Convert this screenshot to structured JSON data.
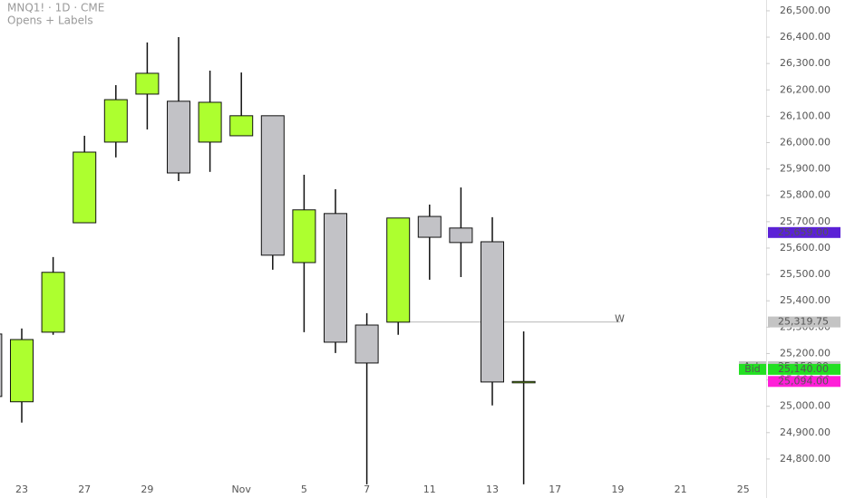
{
  "chart_data": {
    "type": "candlestick",
    "title": "MNQ1! · 1D · CME",
    "subtitle": "Opens + Labels",
    "categories": [
      null,
      "23",
      null,
      "27",
      null,
      "29",
      null,
      null,
      "Nov",
      null,
      "5",
      null,
      "7",
      null,
      "11",
      null,
      "13",
      null,
      "17",
      null,
      "19",
      null,
      "21",
      null,
      "25",
      null
    ],
    "open": [
      25274,
      25017,
      25281,
      25696,
      26002,
      26184,
      26157,
      26002,
      26026,
      26102,
      25545,
      25731,
      25308,
      25319,
      25720,
      25676,
      25624,
      25094,
      null,
      null,
      null,
      null,
      null,
      null,
      null,
      null
    ],
    "high": [
      25274,
      25295,
      25566,
      26026,
      26218,
      26380,
      26400,
      26273,
      26266,
      26102,
      25878,
      25823,
      25353,
      25714,
      25765,
      25830,
      25717,
      25284,
      null,
      null,
      null,
      null,
      null,
      null,
      null,
      null
    ],
    "low": [
      25037,
      24938,
      25271,
      25696,
      25944,
      26050,
      25854,
      25889,
      26026,
      25518,
      25281,
      25202,
      24704,
      25271,
      25480,
      25490,
      25003,
      24704,
      null,
      null,
      null,
      null,
      null,
      null,
      null,
      null
    ],
    "close": [
      25037,
      25253,
      25508,
      25964,
      26163,
      26263,
      25885,
      26153,
      26102,
      25573,
      25745,
      25243,
      25164,
      25714,
      25641,
      25621,
      25092,
      25094,
      null,
      null,
      null,
      null,
      null,
      null,
      null,
      null
    ],
    "up_color": "#adff2f",
    "down_color": "#c2c2c6",
    "ylim": [
      24652,
      26541
    ],
    "yticks": [
      {
        "value": 26500,
        "label": "26,500.00"
      },
      {
        "value": 26400,
        "label": "26,400.00"
      },
      {
        "value": 26300,
        "label": "26,300.00"
      },
      {
        "value": 26200,
        "label": "26,200.00"
      },
      {
        "value": 26100,
        "label": "26,100.00"
      },
      {
        "value": 26000,
        "label": "26,000.00"
      },
      {
        "value": 25900,
        "label": "25,900.00"
      },
      {
        "value": 25800,
        "label": "25,800.00"
      },
      {
        "value": 25700,
        "label": "25,700.00"
      },
      {
        "value": 25600,
        "label": "25,600.00"
      },
      {
        "value": 25500,
        "label": "25,500.00"
      },
      {
        "value": 25400,
        "label": "25,400.00"
      },
      {
        "value": 25300,
        "label": "25,300.00"
      },
      {
        "value": 25200,
        "label": "25,200.00"
      },
      {
        "value": 25100,
        "label": "25,100.00"
      },
      {
        "value": 25000,
        "label": "25,000.00"
      },
      {
        "value": 24900,
        "label": "24,900.00"
      },
      {
        "value": 24800,
        "label": "24,800.00"
      }
    ],
    "price_tags": [
      {
        "value": 25659,
        "label": "25,659.00",
        "color": "#5b21d6"
      },
      {
        "value": 25319.75,
        "label": "25,319.75",
        "color": "#c4c4c4"
      },
      {
        "name": "Ask",
        "value": 25150,
        "label": "25,150.00",
        "color": "#c4c4c4"
      },
      {
        "name": "Bid",
        "value": 25140,
        "label": "25,140.00",
        "color": "#22e022"
      },
      {
        "value": 25094,
        "label": "25,094.00",
        "color": "#ff1fd8"
      }
    ],
    "level_line": {
      "value": 25319.75,
      "label": "W"
    }
  }
}
